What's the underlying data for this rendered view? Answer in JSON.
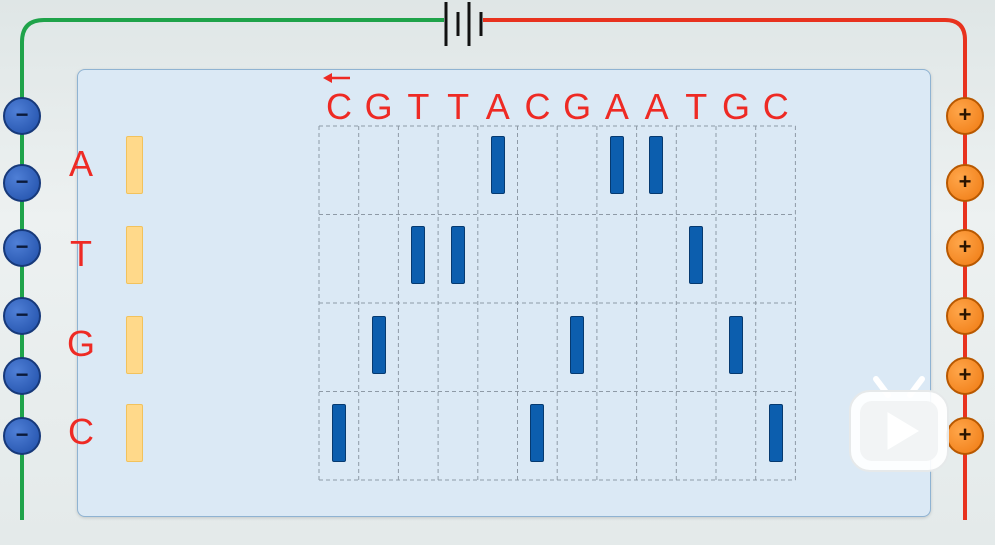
{
  "sequence": [
    "C",
    "G",
    "T",
    "T",
    "A",
    "C",
    "G",
    "A",
    "A",
    "T",
    "G",
    "C"
  ],
  "lanes": [
    "A",
    "T",
    "G",
    "C"
  ],
  "electrodes": {
    "negative_symbol": "−",
    "positive_symbol": "+",
    "count_left": 6,
    "count_right": 6
  },
  "bands": [
    {
      "column": 1,
      "lane": "C"
    },
    {
      "column": 2,
      "lane": "G"
    },
    {
      "column": 3,
      "lane": "T"
    },
    {
      "column": 4,
      "lane": "T"
    },
    {
      "column": 5,
      "lane": "A"
    },
    {
      "column": 6,
      "lane": "C"
    },
    {
      "column": 7,
      "lane": "G"
    },
    {
      "column": 8,
      "lane": "A"
    },
    {
      "column": 9,
      "lane": "A"
    },
    {
      "column": 10,
      "lane": "T"
    },
    {
      "column": 11,
      "lane": "G"
    },
    {
      "column": 12,
      "lane": "C"
    }
  ],
  "read_direction_icon": "left-arrow-icon",
  "overlay_icon": "video-player-icon",
  "colors": {
    "negative_wire": "#1fa34a",
    "positive_wire": "#e8321e",
    "text_red": "#ee2a24",
    "band_blue": "#0c5eae",
    "well_yellow": "#ffd98a"
  }
}
